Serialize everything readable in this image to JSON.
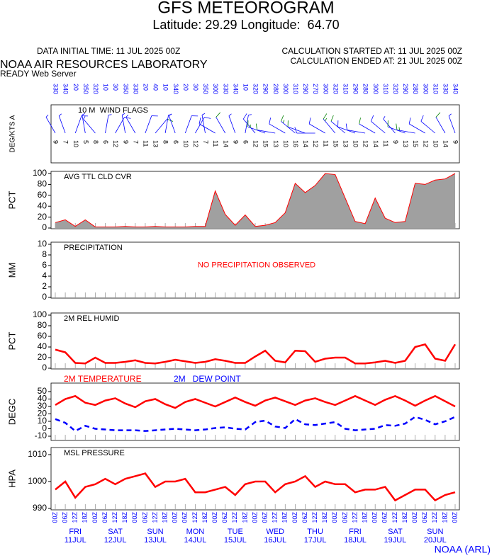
{
  "header": {
    "title": "GFS METEOROGRAM",
    "subtitle": "Latitude: 29.29 Longitude:  64.70",
    "initial_time": "DATA INITIAL TIME: 11 JUL 2025 00Z",
    "calc_started": "CALCULATION STARTED AT: 11 JUL 2025 00Z",
    "calc_ended": "CALCULATION ENDED AT: 21 JUL 2025 00Z",
    "organization": "NOAA AIR RESOURCES LABORATORY",
    "server": "READY Web Server",
    "footer": "NOAA (ARL)"
  },
  "x_axis": {
    "categories": [
      "00Z",
      "06Z",
      "12Z",
      "18Z",
      "00Z",
      "06Z",
      "12Z",
      "18Z",
      "00Z",
      "06Z",
      "12Z",
      "18Z",
      "00Z",
      "06Z",
      "12Z",
      "18Z",
      "00Z",
      "06Z",
      "12Z",
      "18Z",
      "00Z",
      "06Z",
      "12Z",
      "18Z",
      "00Z",
      "06Z",
      "12Z",
      "18Z",
      "00Z",
      "06Z",
      "12Z",
      "18Z",
      "00Z",
      "06Z",
      "12Z",
      "18Z",
      "00Z",
      "06Z",
      "12Z",
      "18Z",
      "00Z"
    ],
    "days": [
      {
        "weekday": "FRI",
        "date": "11JUL"
      },
      {
        "weekday": "SAT",
        "date": "12JUL"
      },
      {
        "weekday": "SUN",
        "date": "13JUL"
      },
      {
        "weekday": "MON",
        "date": "14JUL"
      },
      {
        "weekday": "TUE",
        "date": "15JUL"
      },
      {
        "weekday": "WED",
        "date": "16JUL"
      },
      {
        "weekday": "THU",
        "date": "17JUL"
      },
      {
        "weekday": "FRI",
        "date": "18JUL"
      },
      {
        "weekday": "SAT",
        "date": "19JUL"
      },
      {
        "weekday": "SUN",
        "date": "20JUL"
      }
    ]
  },
  "chart_data": [
    {
      "type": "wind_barbs",
      "title": "10 M  WIND FLAGS",
      "ylabel": "DEG/KTS A",
      "color": "#0000ff",
      "direction": [
        330,
        340,
        20,
        350,
        320,
        10,
        30,
        350,
        330,
        20,
        40,
        10,
        340,
        20,
        30,
        350,
        300,
        330,
        340,
        10,
        320,
        290,
        280,
        300,
        310,
        290,
        270,
        300,
        320,
        310,
        290,
        280,
        300,
        310,
        320,
        290,
        280,
        300,
        310,
        330,
        340
      ],
      "speed": [
        9,
        7,
        10,
        5,
        8,
        6,
        12,
        9,
        7,
        11,
        13,
        8,
        6,
        10,
        12,
        7,
        11,
        14,
        9,
        6,
        12,
        15,
        13,
        10,
        16,
        14,
        12,
        11,
        15,
        13,
        10,
        12,
        14,
        11,
        9,
        13,
        15,
        12,
        10,
        14,
        9
      ]
    },
    {
      "type": "area",
      "title": "AVG TTL CLD CVR",
      "ylabel": "PCT",
      "ylim": [
        0,
        100
      ],
      "yticks": [
        0,
        20,
        40,
        60,
        80,
        100
      ],
      "series": [
        {
          "name": "AVG TTL CLD CVR",
          "color": "#ff0000",
          "fill": "#a0a0a0",
          "values": [
            10,
            15,
            3,
            15,
            2,
            2,
            2,
            3,
            2,
            2,
            3,
            2,
            2,
            2,
            3,
            3,
            68,
            25,
            5,
            24,
            3,
            5,
            10,
            28,
            82,
            65,
            78,
            100,
            98,
            55,
            12,
            8,
            55,
            18,
            10,
            12,
            82,
            80,
            88,
            90,
            100
          ]
        }
      ]
    },
    {
      "type": "empty",
      "title": "PRECIPITATION",
      "ylabel": "MM",
      "ylim": [
        0,
        10
      ],
      "yticks": [
        0,
        2,
        4,
        6,
        8,
        10
      ],
      "annotation": "NO PRECIPITATION OBSERVED",
      "annotation_color": "#ff0000"
    },
    {
      "type": "line",
      "title": "2M REL HUMID",
      "ylabel": "PCT",
      "ylim": [
        0,
        100
      ],
      "yticks": [
        0,
        20,
        40,
        60,
        80,
        100
      ],
      "series": [
        {
          "name": "2M REL HUMID",
          "color": "#ff0000",
          "values": [
            35,
            30,
            10,
            9,
            20,
            10,
            10,
            12,
            15,
            10,
            9,
            12,
            16,
            13,
            10,
            12,
            17,
            14,
            10,
            10,
            22,
            33,
            14,
            11,
            33,
            32,
            12,
            18,
            20,
            20,
            9,
            9,
            11,
            14,
            10,
            14,
            40,
            45,
            18,
            14,
            45
          ]
        }
      ]
    },
    {
      "type": "line",
      "ylabel": "DEGC",
      "legend_inline": true,
      "ylim": [
        -10,
        50
      ],
      "yticks": [
        -10,
        0,
        10,
        20,
        30,
        40,
        50
      ],
      "series": [
        {
          "name": "2M TEMPERATURE",
          "color": "#ff0000",
          "dashed": false,
          "values": [
            32,
            40,
            44,
            35,
            32,
            38,
            41,
            34,
            29,
            37,
            40,
            33,
            28,
            36,
            40,
            35,
            30,
            36,
            42,
            36,
            31,
            38,
            42,
            37,
            32,
            38,
            41,
            36,
            32,
            38,
            44,
            38,
            32,
            39,
            44,
            38,
            31,
            38,
            44,
            37,
            30
          ]
        },
        {
          "name": "2M   DEW POINT",
          "color": "#0000ff",
          "dashed": true,
          "values": [
            13,
            8,
            -3,
            4,
            0,
            -1,
            -2,
            -2,
            -2,
            -3,
            -2,
            -1,
            0,
            -1,
            -2,
            -1,
            1,
            2,
            0,
            -1,
            9,
            11,
            3,
            1,
            13,
            6,
            5,
            7,
            9,
            0,
            -2,
            -1,
            0,
            5,
            4,
            7,
            16,
            12,
            6,
            10,
            16
          ]
        }
      ]
    },
    {
      "type": "line",
      "title": "MSL PRESSURE",
      "ylabel": "HPA",
      "ylim": [
        990,
        1010
      ],
      "yticks": [
        990,
        1000,
        1010
      ],
      "series": [
        {
          "name": "MSL PRESSURE",
          "color": "#ff0000",
          "values": [
            997,
            1000,
            994,
            998,
            999,
            1001,
            999,
            1001,
            1002,
            1003,
            998,
            1000,
            1000,
            1001,
            996,
            996,
            997,
            998,
            995,
            999,
            1000,
            1000,
            996,
            999,
            1000,
            1002,
            998,
            1000,
            999,
            999,
            996,
            997,
            997,
            998,
            993,
            995,
            997,
            997,
            993,
            995,
            996
          ]
        }
      ]
    }
  ]
}
